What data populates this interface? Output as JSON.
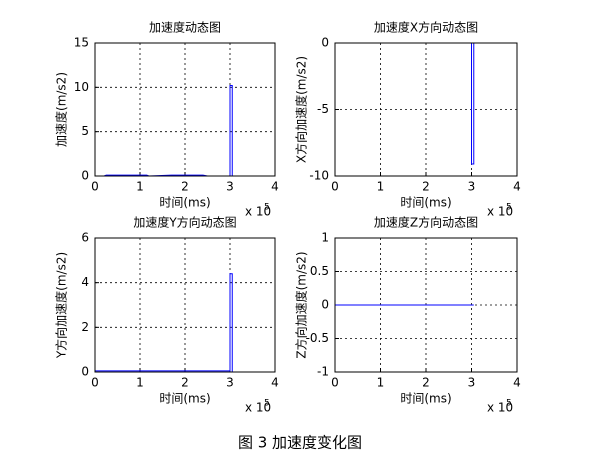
{
  "chart_data": [
    {
      "type": "line",
      "title": "加速度动态图",
      "xlabel": "时间(ms)",
      "ylabel": "加速度(m/s2)",
      "x_scale_label": "x 10",
      "x_scale_exponent": "5",
      "x": [
        0,
        0.2,
        0.25,
        0.5,
        1.15,
        1.2,
        1.7,
        2.4,
        2.5,
        3.0,
        3.0,
        3.05,
        3.05
      ],
      "series": [
        {
          "color": "#0000ff",
          "values": [
            0,
            0,
            0.1,
            0.1,
            0.1,
            0,
            0.1,
            0.1,
            0,
            0,
            10.2,
            10.2,
            0
          ]
        }
      ],
      "xlim": [
        0,
        4
      ],
      "xticks": [
        0,
        1,
        2,
        3,
        4
      ],
      "ylim": [
        0,
        15
      ],
      "yticks": [
        0,
        5,
        10,
        15
      ],
      "grid": true
    },
    {
      "type": "line",
      "title": "加速度X方向动态图",
      "xlabel": "时间(ms)",
      "ylabel": "X方向加速度(m/s2)",
      "x_scale_label": "x 10",
      "x_scale_exponent": "5",
      "x": [
        0,
        3.0,
        3.0,
        3.05,
        3.05
      ],
      "series": [
        {
          "color": "#0000ff",
          "values": [
            0,
            0,
            -9.1,
            -9.1,
            0
          ]
        }
      ],
      "xlim": [
        0,
        4
      ],
      "xticks": [
        0,
        1,
        2,
        3,
        4
      ],
      "ylim": [
        -10,
        0
      ],
      "yticks": [
        -10,
        -5,
        0
      ],
      "grid": true
    },
    {
      "type": "line",
      "title": "加速度Y方向动态图",
      "xlabel": "时间(ms)",
      "ylabel": "Y方向加速度(m/s2)",
      "x_scale_label": "x 10",
      "x_scale_exponent": "5",
      "x": [
        0,
        3.0,
        3.0,
        3.05,
        3.05
      ],
      "series": [
        {
          "color": "#0000ff",
          "values": [
            0.05,
            0.05,
            4.4,
            4.4,
            0
          ]
        }
      ],
      "xlim": [
        0,
        4
      ],
      "xticks": [
        0,
        1,
        2,
        3,
        4
      ],
      "ylim": [
        0,
        6
      ],
      "yticks": [
        0,
        2,
        4,
        6
      ],
      "grid": true
    },
    {
      "type": "line",
      "title": "加速度Z方向动态图",
      "xlabel": "时间(ms)",
      "ylabel": "Z方向加速度(m/s2)",
      "x_scale_label": "x 10",
      "x_scale_exponent": "5",
      "x": [
        0,
        3.05
      ],
      "series": [
        {
          "color": "#0000ff",
          "values": [
            0,
            0
          ]
        }
      ],
      "xlim": [
        0,
        4
      ],
      "xticks": [
        0,
        1,
        2,
        3,
        4
      ],
      "ylim": [
        -1,
        1
      ],
      "yticks": [
        -1,
        -0.5,
        0,
        0.5,
        1
      ],
      "grid": true
    }
  ],
  "caption": "图 3  加速度变化图"
}
